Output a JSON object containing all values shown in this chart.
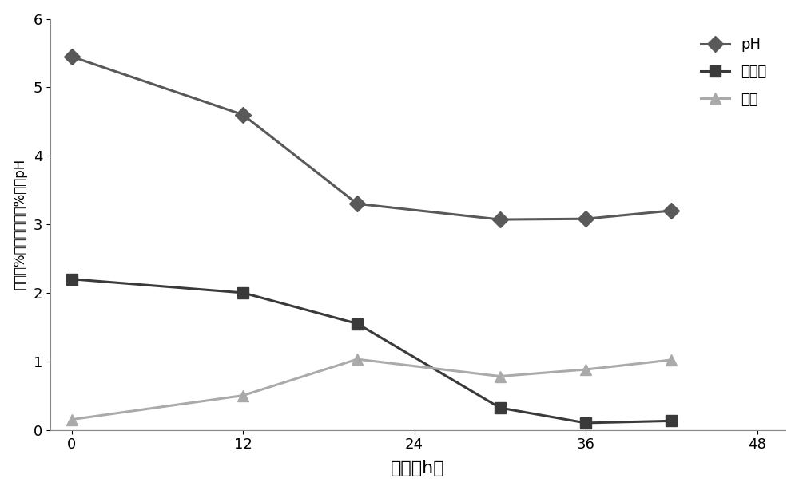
{
  "ph_x": [
    0,
    12,
    20,
    30,
    36,
    42
  ],
  "ph_y": [
    5.45,
    4.6,
    3.3,
    3.07,
    3.08,
    3.2
  ],
  "sugar_x": [
    0,
    12,
    20,
    30,
    36,
    42
  ],
  "sugar_y": [
    2.2,
    2.0,
    1.55,
    0.32,
    0.1,
    0.13
  ],
  "dry_x": [
    0,
    12,
    20,
    30,
    36,
    42
  ],
  "dry_y": [
    0.15,
    0.5,
    1.03,
    0.78,
    0.88,
    1.02
  ],
  "ph_color": "#595959",
  "sugar_color": "#3a3a3a",
  "dry_color": "#aaaaaa",
  "xlabel": "时间（h）",
  "ylabel": "干重（%），还原糖（%），pH",
  "legend_ph": "pH",
  "legend_sugar": "还原糖",
  "legend_dry": "干重",
  "xlim": [
    -1.5,
    50
  ],
  "ylim": [
    0,
    6
  ],
  "xticks": [
    0,
    12,
    24,
    36,
    48
  ],
  "yticks": [
    0,
    1,
    2,
    3,
    4,
    5,
    6
  ],
  "background_color": "#ffffff",
  "linewidth": 2.2,
  "markersize": 10,
  "figsize": [
    10.0,
    6.14
  ],
  "dpi": 100
}
